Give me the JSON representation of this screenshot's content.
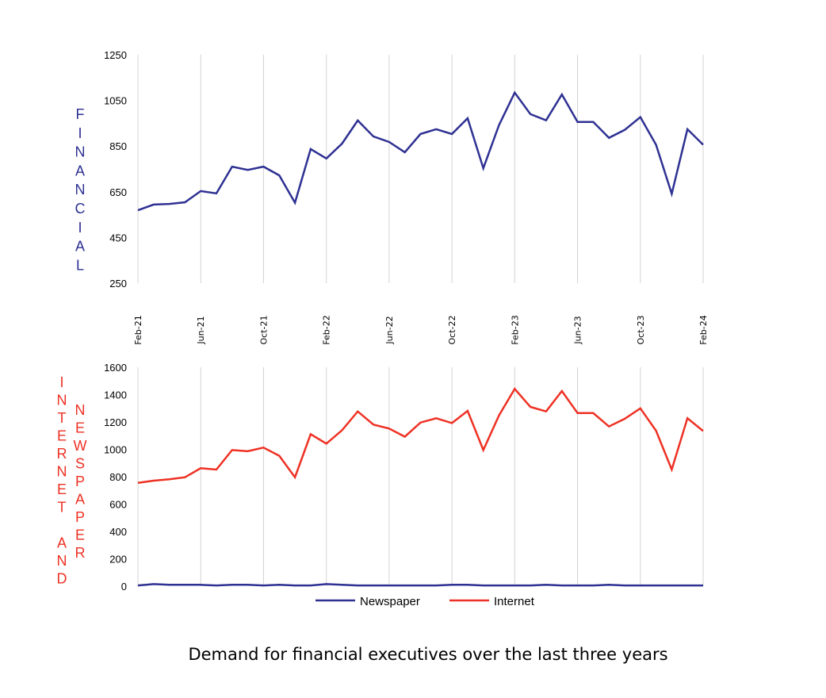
{
  "colors": {
    "financial": "#2E3192",
    "internet": "#EE3124",
    "newspaper": "#2E3192",
    "grid": "#D3D3D3"
  },
  "caption": "Demand for financial executives over the last three years",
  "chart_data": [
    {
      "type": "line",
      "title": "",
      "ylabel": "FINANCIAL",
      "ylabel_letters": [
        "F",
        "I",
        "N",
        "A",
        "N",
        "C",
        "I",
        "A",
        "L"
      ],
      "ylim": [
        250,
        1250
      ],
      "yticks": [
        "250",
        "450",
        "650",
        "850",
        "1050",
        "1250"
      ],
      "grid": "vertical",
      "x_tick_labels": [
        "Feb-21",
        "Jun-21",
        "Oct-21",
        "Feb-22",
        "Jun-22",
        "Oct-22",
        "Feb-23",
        "Jun-23",
        "Oct-23",
        "Feb-24"
      ],
      "x_start": "Feb-21",
      "x_end": "Feb-24",
      "x_step": "month",
      "series": [
        {
          "name": "Financial",
          "values": [
            569,
            594,
            597,
            604,
            653,
            643,
            760,
            746,
            760,
            722,
            602,
            837,
            796,
            861,
            962,
            892,
            868,
            823,
            903,
            924,
            903,
            972,
            753,
            942,
            1084,
            990,
            963,
            1076,
            956,
            956,
            886,
            921,
            977,
            856,
            641,
            924,
            856
          ]
        }
      ]
    },
    {
      "type": "line",
      "title": "",
      "ylabel_col1": [
        "I",
        "N",
        "T",
        "E",
        "R",
        "N",
        "E",
        "T",
        "",
        "A",
        "N",
        "D"
      ],
      "ylabel_col2": [
        "N",
        "E",
        "W",
        "S",
        "P",
        "A",
        "P",
        "E",
        "R"
      ],
      "ylim": [
        0,
        1600
      ],
      "yticks": [
        "0",
        "200",
        "400",
        "600",
        "800",
        "1000",
        "1200",
        "1400",
        "1600"
      ],
      "grid": "vertical",
      "legend_position": "bottom",
      "series": [
        {
          "name": "Newspaper",
          "values": [
            5,
            15,
            10,
            10,
            10,
            5,
            10,
            10,
            5,
            10,
            5,
            5,
            15,
            10,
            5,
            5,
            5,
            5,
            5,
            5,
            10,
            10,
            5,
            5,
            5,
            5,
            10,
            5,
            5,
            5,
            10,
            5,
            5,
            5,
            5,
            5,
            5
          ]
        },
        {
          "name": "Internet",
          "values": [
            755,
            771,
            781,
            796,
            862,
            852,
            995,
            986,
            1013,
            953,
            796,
            1111,
            1042,
            1140,
            1277,
            1181,
            1152,
            1092,
            1196,
            1227,
            1192,
            1281,
            995,
            1248,
            1442,
            1310,
            1277,
            1426,
            1265,
            1265,
            1167,
            1223,
            1300,
            1136,
            852,
            1227,
            1134
          ]
        }
      ]
    }
  ]
}
